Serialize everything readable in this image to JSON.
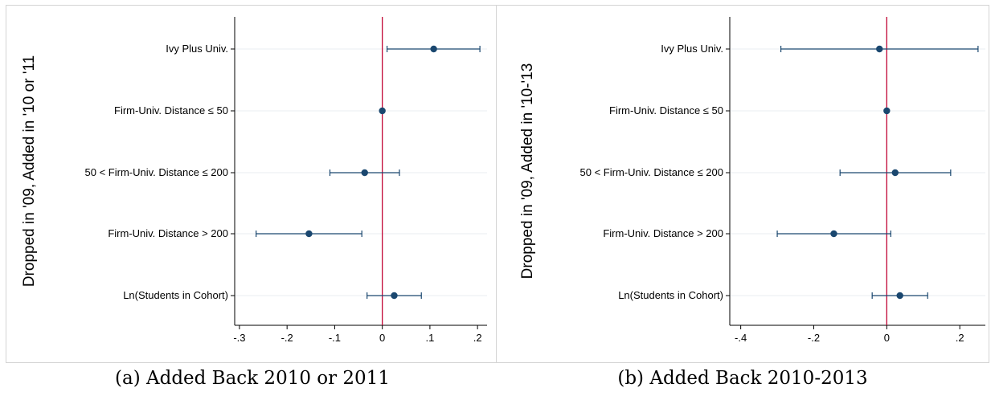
{
  "chart_data": [
    {
      "type": "scatter",
      "ylabel": "Dropped in '09, Added in '10 or '11",
      "caption": "(a) Added Back 2010 or 2011",
      "categories": [
        "Ivy Plus Univ.",
        "Firm-Univ. Distance ≤ 50",
        "50 < Firm-Univ. Distance ≤ 200",
        "Firm-Univ. Distance > 200",
        "Ln(Students in Cohort)"
      ],
      "series": [
        {
          "estimates": [
            0.108,
            0.0,
            -0.037,
            -0.154,
            0.025
          ],
          "ci_low": [
            0.01,
            0.0,
            -0.11,
            -0.265,
            -0.032
          ],
          "ci_high": [
            0.205,
            0.0,
            0.036,
            -0.043,
            0.082
          ]
        }
      ],
      "xlim": [
        -0.31,
        0.22
      ],
      "xticks": [
        -0.3,
        -0.2,
        -0.1,
        0,
        0.1,
        0.2
      ],
      "xtick_labels": [
        "-.3",
        "-.2",
        "-.1",
        "0",
        ".1",
        ".2"
      ],
      "reference_line": 0,
      "grid": true,
      "colors": {
        "marker": "#1a476f",
        "reference": "#c10534",
        "grid": "#e8ecf0"
      }
    },
    {
      "type": "scatter",
      "ylabel": "Dropped in '09, Added in '10-'13",
      "caption": "(b) Added Back 2010-2013",
      "categories": [
        "Ivy Plus Univ.",
        "Firm-Univ. Distance ≤ 50",
        "50 < Firm-Univ. Distance ≤ 200",
        "Firm-Univ. Distance > 200",
        "Ln(Students in Cohort)"
      ],
      "series": [
        {
          "estimates": [
            -0.02,
            0.0,
            0.023,
            -0.145,
            0.036
          ],
          "ci_low": [
            -0.29,
            0.0,
            -0.128,
            -0.3,
            -0.04
          ],
          "ci_high": [
            0.25,
            0.0,
            0.175,
            0.011,
            0.112
          ]
        }
      ],
      "xlim": [
        -0.43,
        0.27
      ],
      "xticks": [
        -0.4,
        -0.2,
        0,
        0.2
      ],
      "xtick_labels": [
        "-.4",
        "-.2",
        "0",
        ".2"
      ],
      "reference_line": 0,
      "grid": true,
      "colors": {
        "marker": "#1a476f",
        "reference": "#c10534",
        "grid": "#e8ecf0"
      }
    }
  ]
}
